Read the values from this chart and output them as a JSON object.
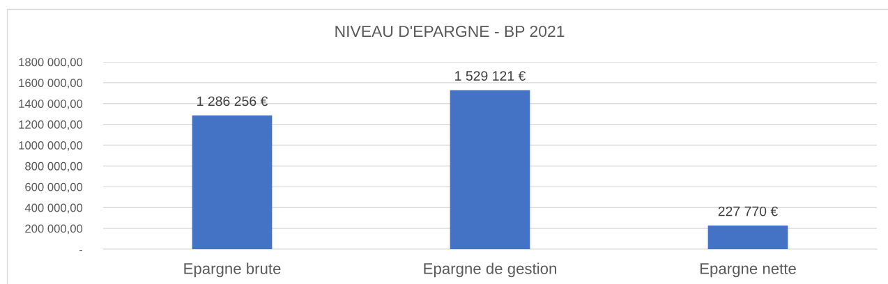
{
  "chart_data": {
    "type": "bar",
    "title": "NIVEAU D'EPARGNE - BP 2021",
    "categories": [
      "Epargne brute",
      "Epargne de gestion",
      "Epargne nette"
    ],
    "values": [
      1286256,
      1529121,
      227770
    ],
    "color": "#4472c4",
    "value_labels": [
      "1 286 256 €",
      "1 529 121 €",
      "227 770 €"
    ],
    "ylim": [
      0,
      1800000
    ],
    "yticks": [
      {
        "value": 0,
        "label": "-"
      },
      {
        "value": 200000,
        "label": "200 000,00"
      },
      {
        "value": 400000,
        "label": "400 000,00"
      },
      {
        "value": 600000,
        "label": "600 000,00"
      },
      {
        "value": 800000,
        "label": "800 000,00"
      },
      {
        "value": 1000000,
        "label": "1000 000,00"
      },
      {
        "value": 1200000,
        "label": "1200 000,00"
      },
      {
        "value": 1400000,
        "label": "1400 000,00"
      },
      {
        "value": 1600000,
        "label": "1600 000,00"
      },
      {
        "value": 1800000,
        "label": "1800 000,00"
      }
    ],
    "grid": "y",
    "legend": false
  }
}
